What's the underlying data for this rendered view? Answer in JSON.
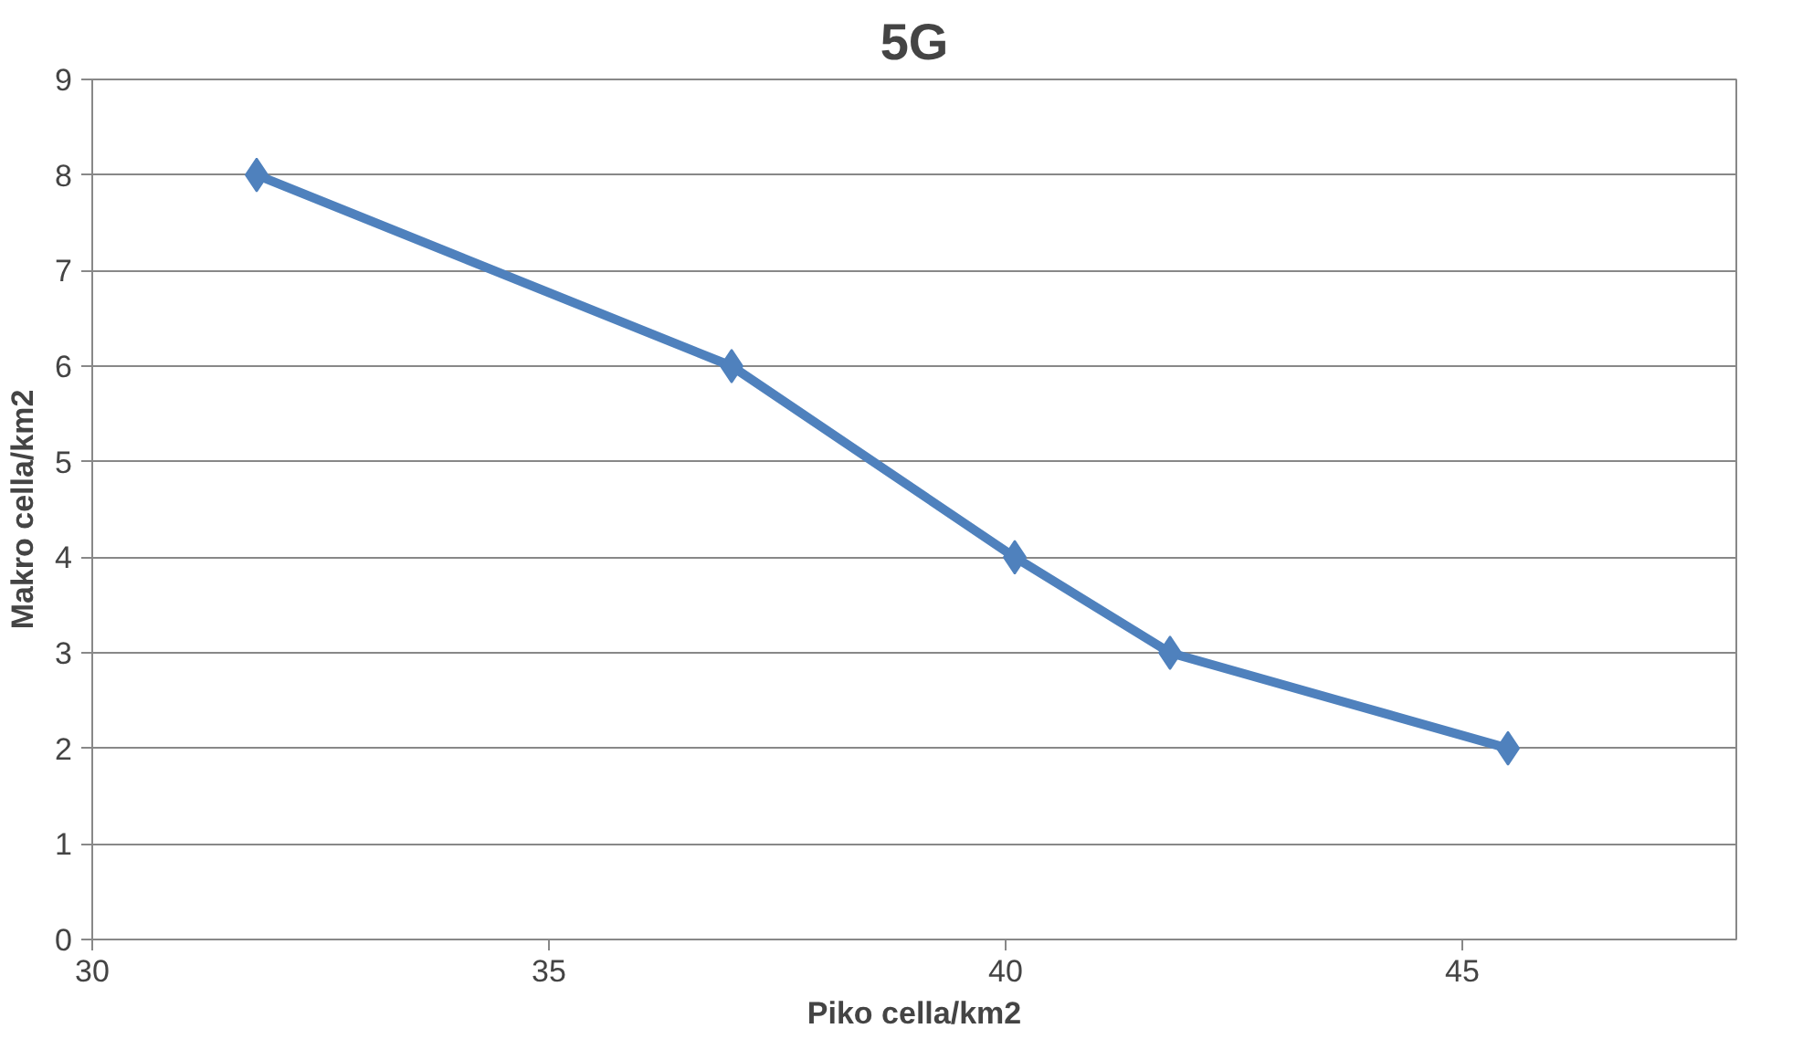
{
  "chart_data": {
    "type": "line",
    "title": "5G",
    "xlabel": "Piko cella/km2",
    "ylabel": "Makro cella/km2",
    "x": [
      31.8,
      37.0,
      40.1,
      41.8,
      45.5
    ],
    "series": [
      {
        "color": "#4f81bd",
        "values": [
          8,
          6,
          4,
          3,
          2
        ]
      }
    ],
    "xlim": [
      30,
      48
    ],
    "xticks": [
      30,
      35,
      40,
      45
    ],
    "ylim": [
      0,
      9
    ],
    "yticks": [
      0,
      1,
      2,
      3,
      4,
      5,
      6,
      7,
      8,
      9
    ],
    "grid": "y",
    "marker": "diamond",
    "line_style": "solid"
  }
}
